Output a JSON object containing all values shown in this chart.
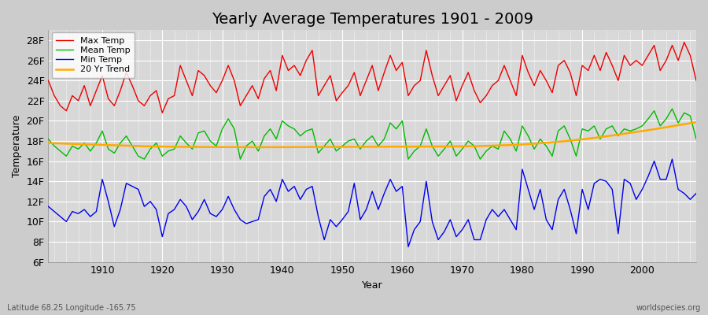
{
  "title": "Yearly Average Temperatures 1901 - 2009",
  "xlabel": "Year",
  "ylabel": "Temperature",
  "subtitle_left": "Latitude 68.25 Longitude -165.75",
  "subtitle_right": "worldspecies.org",
  "years": [
    1901,
    1902,
    1903,
    1904,
    1905,
    1906,
    1907,
    1908,
    1909,
    1910,
    1911,
    1912,
    1913,
    1914,
    1915,
    1916,
    1917,
    1918,
    1919,
    1920,
    1921,
    1922,
    1923,
    1924,
    1925,
    1926,
    1927,
    1928,
    1929,
    1930,
    1931,
    1932,
    1933,
    1934,
    1935,
    1936,
    1937,
    1938,
    1939,
    1940,
    1941,
    1942,
    1943,
    1944,
    1945,
    1946,
    1947,
    1948,
    1949,
    1950,
    1951,
    1952,
    1953,
    1954,
    1955,
    1956,
    1957,
    1958,
    1959,
    1960,
    1961,
    1962,
    1963,
    1964,
    1965,
    1966,
    1967,
    1968,
    1969,
    1970,
    1971,
    1972,
    1973,
    1974,
    1975,
    1976,
    1977,
    1978,
    1979,
    1980,
    1981,
    1982,
    1983,
    1984,
    1985,
    1986,
    1987,
    1988,
    1989,
    1990,
    1991,
    1992,
    1993,
    1994,
    1995,
    1996,
    1997,
    1998,
    1999,
    2000,
    2001,
    2002,
    2003,
    2004,
    2005,
    2006,
    2007,
    2008,
    2009
  ],
  "max_temp": [
    24.0,
    22.5,
    21.5,
    21.0,
    22.5,
    22.0,
    23.5,
    21.5,
    23.0,
    24.5,
    22.2,
    21.5,
    23.0,
    24.8,
    23.5,
    22.0,
    21.5,
    22.5,
    23.0,
    20.8,
    22.2,
    22.5,
    25.5,
    24.0,
    22.5,
    25.0,
    24.5,
    23.5,
    22.8,
    24.0,
    25.5,
    24.0,
    21.5,
    22.5,
    23.5,
    22.2,
    24.2,
    25.0,
    23.0,
    26.5,
    25.0,
    25.5,
    24.5,
    26.0,
    27.0,
    22.5,
    23.5,
    24.5,
    22.0,
    22.8,
    23.5,
    24.8,
    22.5,
    24.0,
    25.5,
    23.0,
    24.8,
    26.5,
    25.0,
    25.8,
    22.5,
    23.5,
    24.0,
    27.0,
    24.5,
    22.5,
    23.5,
    24.5,
    22.0,
    23.5,
    24.8,
    23.0,
    21.8,
    22.5,
    23.5,
    24.0,
    25.5,
    24.0,
    22.5,
    26.5,
    24.8,
    23.5,
    25.0,
    24.0,
    22.8,
    25.5,
    26.0,
    24.8,
    22.5,
    25.5,
    25.0,
    26.5,
    25.0,
    26.8,
    25.5,
    24.0,
    26.5,
    25.5,
    26.0,
    25.5,
    26.5,
    27.5,
    25.0,
    26.0,
    27.5,
    26.0,
    27.8,
    26.5,
    24.0
  ],
  "mean_temp": [
    18.2,
    17.5,
    17.0,
    16.5,
    17.5,
    17.2,
    17.8,
    17.0,
    17.8,
    19.0,
    17.2,
    16.8,
    17.8,
    18.5,
    17.5,
    16.5,
    16.2,
    17.2,
    17.8,
    16.5,
    17.0,
    17.2,
    18.5,
    17.8,
    17.2,
    18.8,
    19.0,
    18.0,
    17.5,
    19.2,
    20.2,
    19.2,
    16.2,
    17.5,
    18.0,
    17.0,
    18.5,
    19.2,
    18.2,
    20.0,
    19.5,
    19.2,
    18.5,
    19.0,
    19.2,
    16.8,
    17.5,
    18.2,
    17.0,
    17.5,
    18.0,
    18.2,
    17.2,
    18.0,
    18.5,
    17.5,
    18.2,
    19.8,
    19.2,
    20.0,
    16.2,
    17.0,
    17.5,
    19.2,
    17.5,
    16.5,
    17.2,
    18.0,
    16.5,
    17.2,
    18.0,
    17.5,
    16.2,
    17.0,
    17.5,
    17.2,
    19.0,
    18.2,
    17.0,
    19.5,
    18.5,
    17.2,
    18.2,
    17.5,
    16.5,
    19.0,
    19.5,
    18.2,
    16.5,
    19.2,
    19.0,
    19.5,
    18.2,
    19.2,
    19.5,
    18.5,
    19.2,
    19.0,
    19.2,
    19.5,
    20.2,
    21.0,
    19.5,
    20.2,
    21.2,
    19.8,
    20.8,
    20.5,
    18.2
  ],
  "min_temp": [
    11.5,
    11.0,
    10.5,
    10.0,
    11.0,
    10.8,
    11.2,
    10.5,
    11.0,
    14.2,
    12.0,
    9.5,
    11.2,
    13.8,
    13.5,
    13.2,
    11.5,
    12.0,
    11.2,
    8.5,
    10.8,
    11.2,
    12.2,
    11.5,
    10.2,
    11.0,
    12.2,
    10.8,
    10.5,
    11.2,
    12.5,
    11.2,
    10.2,
    9.8,
    10.0,
    10.2,
    12.5,
    13.2,
    12.0,
    14.2,
    13.0,
    13.5,
    12.2,
    13.2,
    13.5,
    10.5,
    8.2,
    10.2,
    9.5,
    10.2,
    11.0,
    13.8,
    10.2,
    11.2,
    13.0,
    11.2,
    12.8,
    14.2,
    13.0,
    13.5,
    7.5,
    9.2,
    10.0,
    14.0,
    10.0,
    8.2,
    9.0,
    10.2,
    8.5,
    9.2,
    10.2,
    8.2,
    8.2,
    10.2,
    11.2,
    10.5,
    11.2,
    10.2,
    9.2,
    15.2,
    13.2,
    11.2,
    13.2,
    10.2,
    9.2,
    12.2,
    13.2,
    11.2,
    8.8,
    13.2,
    11.2,
    13.8,
    14.2,
    14.0,
    13.2,
    8.8,
    14.2,
    13.8,
    12.2,
    13.2,
    14.5,
    16.0,
    14.2,
    14.2,
    16.2,
    13.2,
    12.8,
    12.2,
    12.8
  ],
  "trend_values": [
    17.8,
    17.78,
    17.76,
    17.74,
    17.72,
    17.7,
    17.68,
    17.66,
    17.64,
    17.62,
    17.6,
    17.58,
    17.56,
    17.54,
    17.52,
    17.5,
    17.48,
    17.47,
    17.46,
    17.45,
    17.44,
    17.43,
    17.42,
    17.42,
    17.41,
    17.41,
    17.4,
    17.4,
    17.4,
    17.4,
    17.4,
    17.4,
    17.39,
    17.39,
    17.39,
    17.39,
    17.39,
    17.39,
    17.39,
    17.39,
    17.39,
    17.4,
    17.4,
    17.4,
    17.41,
    17.41,
    17.41,
    17.41,
    17.41,
    17.42,
    17.42,
    17.42,
    17.42,
    17.42,
    17.43,
    17.43,
    17.43,
    17.44,
    17.44,
    17.44,
    17.44,
    17.44,
    17.45,
    17.45,
    17.45,
    17.46,
    17.46,
    17.46,
    17.47,
    17.47,
    17.48,
    17.48,
    17.5,
    17.52,
    17.54,
    17.56,
    17.58,
    17.6,
    17.63,
    17.66,
    17.7,
    17.74,
    17.78,
    17.83,
    17.88,
    17.93,
    17.98,
    18.04,
    18.1,
    18.17,
    18.24,
    18.31,
    18.39,
    18.47,
    18.55,
    18.63,
    18.72,
    18.81,
    18.9,
    18.99,
    19.08,
    19.17,
    19.27,
    19.37,
    19.47,
    19.57,
    19.67,
    19.77,
    19.87
  ],
  "bg_color": "#cccccc",
  "plot_bg_color": "#d8d8d8",
  "grid_color": "#ffffff",
  "max_color": "#ee0000",
  "mean_color": "#00bb00",
  "min_color": "#0000ee",
  "trend_color": "#ffaa00",
  "ylim": [
    6,
    29
  ],
  "yticks": [
    6,
    8,
    10,
    12,
    14,
    16,
    18,
    20,
    22,
    24,
    26,
    28
  ],
  "xlim": [
    1901,
    2009
  ],
  "title_fontsize": 14,
  "axis_fontsize": 9,
  "legend_fontsize": 8,
  "linewidth": 1.0
}
